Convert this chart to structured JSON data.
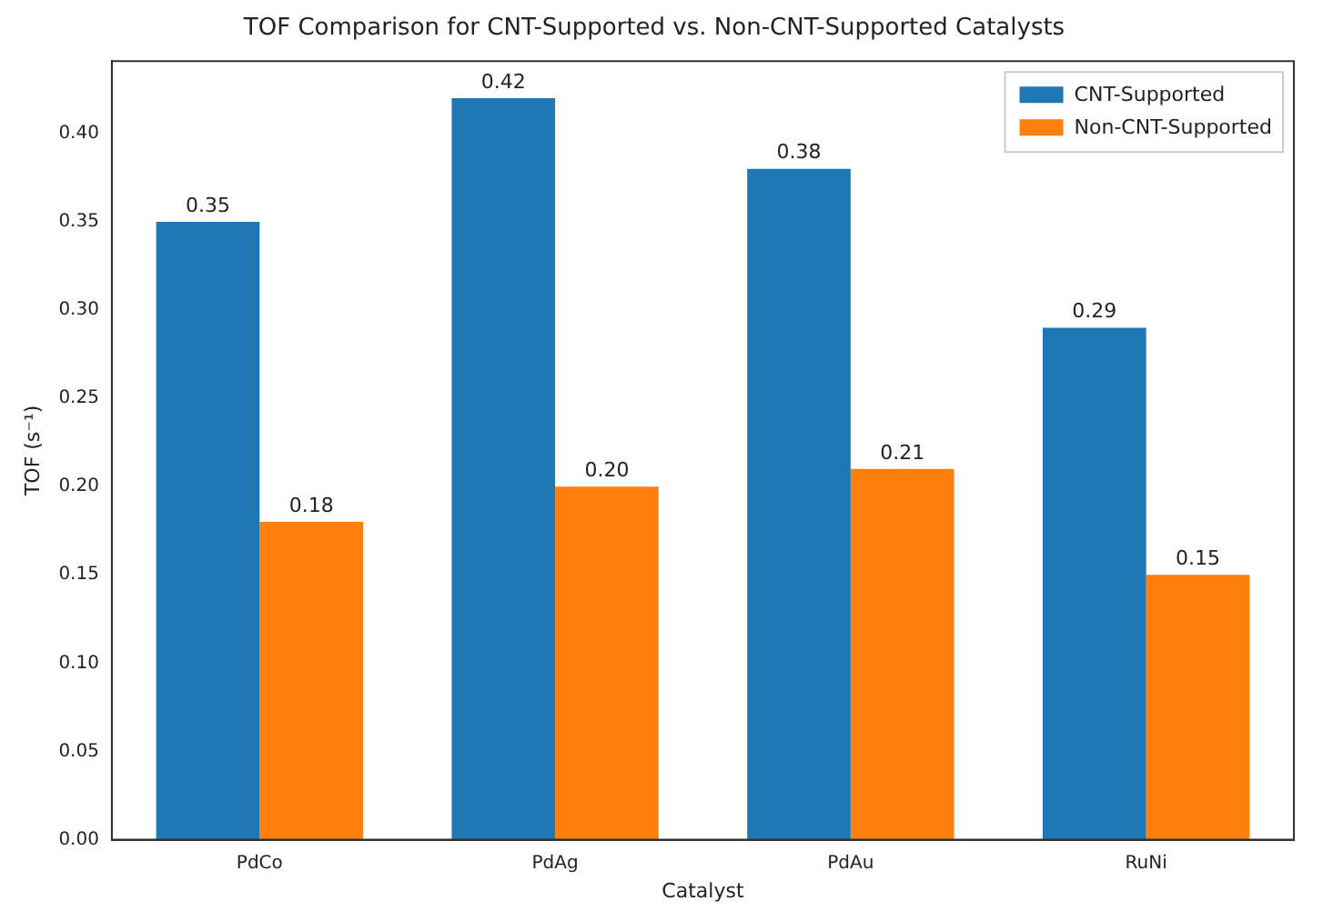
{
  "chart_data": {
    "type": "bar",
    "title": "TOF Comparison for CNT-Supported vs. Non-CNT-Supported Catalysts",
    "xlabel": "Catalyst",
    "ylabel": "TOF (s⁻¹)",
    "categories": [
      "PdCo",
      "PdAg",
      "PdAu",
      "RuNi"
    ],
    "series": [
      {
        "name": "CNT-Supported",
        "color": "#1f77b4",
        "values": [
          0.35,
          0.42,
          0.38,
          0.29
        ],
        "value_labels": [
          "0.35",
          "0.42",
          "0.38",
          "0.29"
        ]
      },
      {
        "name": "Non-CNT-Supported",
        "color": "#ff7f0e",
        "values": [
          0.18,
          0.2,
          0.21,
          0.15
        ],
        "value_labels": [
          "0.18",
          "0.20",
          "0.21",
          "0.15"
        ]
      }
    ],
    "ylim": [
      0,
      0.441
    ],
    "yticks": [
      {
        "value": 0,
        "label": "0.00"
      },
      {
        "value": 0.05,
        "label": "0.05"
      },
      {
        "value": 0.1,
        "label": "0.10"
      },
      {
        "value": 0.15,
        "label": "0.15"
      },
      {
        "value": 0.2,
        "label": "0.20"
      },
      {
        "value": 0.25,
        "label": "0.25"
      },
      {
        "value": 0.3,
        "label": "0.30"
      },
      {
        "value": 0.35,
        "label": "0.35"
      },
      {
        "value": 0.4,
        "label": "0.40"
      }
    ],
    "legend": "top right",
    "grid": false
  }
}
